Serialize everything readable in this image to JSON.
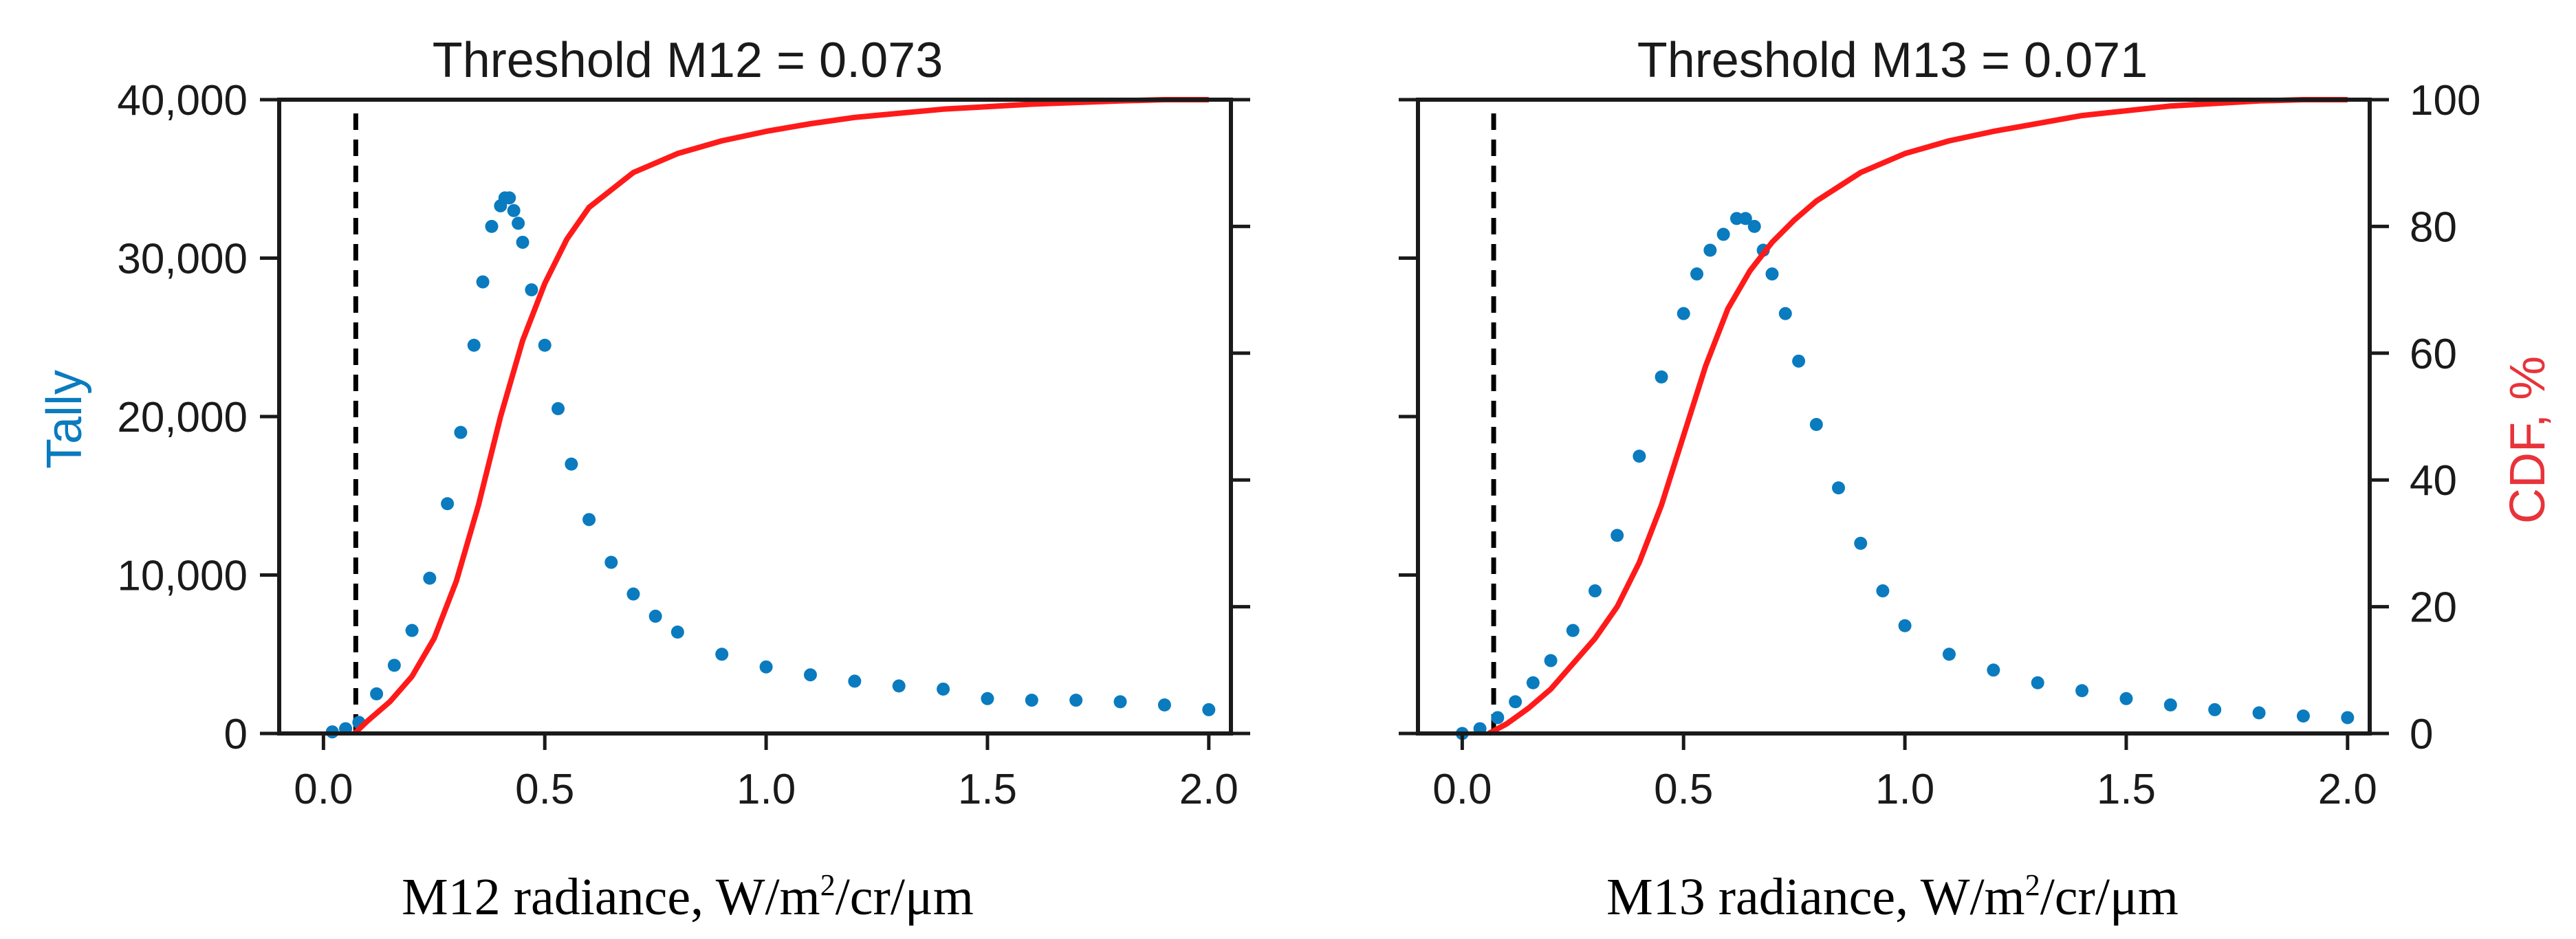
{
  "colors": {
    "tally": "#0a7bbf",
    "cdf": "#ff1a1a",
    "threshold": "#000000",
    "axes": "#1a1a1a"
  },
  "chart_data": [
    {
      "id": "m12",
      "type": "scatter",
      "title": "Threshold M12 = 0.073",
      "threshold": 0.073,
      "xlabel": {
        "main": "M12 radiance, W/m",
        "sup": "2",
        "rest": "/cr/μm"
      },
      "ylabel": "Tally",
      "y2label": "CDF, %",
      "xlim": [
        -0.1,
        2.05
      ],
      "ylim": [
        0,
        40000
      ],
      "y2lim": [
        0,
        100
      ],
      "xticks": [
        0,
        0.5,
        1,
        1.5,
        2
      ],
      "xticklabels": [
        "0.0",
        "0.5",
        "1.0",
        "1.5",
        "2.0"
      ],
      "yticks": [
        0,
        10000,
        20000,
        30000,
        40000
      ],
      "yticklabels": [
        "0",
        "10,000",
        "20,000",
        "30,000",
        "40,000"
      ],
      "y2ticks": [
        0,
        20,
        40,
        60,
        80,
        100
      ],
      "y2ticklabels": [],
      "series": [
        {
          "name": "Tally",
          "kind": "scatter",
          "x": [
            0.02,
            0.05,
            0.08,
            0.12,
            0.16,
            0.2,
            0.24,
            0.28,
            0.31,
            0.34,
            0.36,
            0.38,
            0.4,
            0.41,
            0.42,
            0.43,
            0.44,
            0.45,
            0.47,
            0.5,
            0.53,
            0.56,
            0.6,
            0.65,
            0.7,
            0.75,
            0.8,
            0.9,
            1.0,
            1.1,
            1.2,
            1.3,
            1.4,
            1.5,
            1.6,
            1.7,
            1.8,
            1.9,
            2.0
          ],
          "y": [
            100,
            300,
            700,
            2500,
            4300,
            6500,
            9800,
            14500,
            19000,
            24500,
            28500,
            32000,
            33300,
            33800,
            33800,
            33000,
            32200,
            31000,
            28000,
            24500,
            20500,
            17000,
            13500,
            10800,
            8800,
            7400,
            6400,
            5000,
            4200,
            3700,
            3300,
            3000,
            2800,
            2200,
            2100,
            2100,
            2000,
            1800,
            1500
          ]
        },
        {
          "name": "CDF",
          "kind": "line",
          "x": [
            0.07,
            0.1,
            0.15,
            0.2,
            0.25,
            0.3,
            0.35,
            0.4,
            0.45,
            0.5,
            0.55,
            0.6,
            0.7,
            0.8,
            0.9,
            1.0,
            1.1,
            1.2,
            1.4,
            1.6,
            1.8,
            1.9,
            2.0
          ],
          "y": [
            0,
            2,
            5,
            9,
            15,
            24,
            36,
            50,
            62,
            71,
            78,
            83,
            88.5,
            91.5,
            93.5,
            95,
            96.2,
            97.2,
            98.5,
            99.3,
            99.8,
            100,
            100
          ]
        }
      ]
    },
    {
      "id": "m13",
      "type": "scatter",
      "title": "Threshold M13 = 0.071",
      "threshold": 0.071,
      "xlabel": {
        "main": "M13 radiance, W/m",
        "sup": "2",
        "rest": "/cr/μm"
      },
      "ylabel": "Tally",
      "y2label": "CDF, %",
      "xlim": [
        -0.1,
        2.05
      ],
      "ylim": [
        0,
        40000
      ],
      "y2lim": [
        0,
        100
      ],
      "xticks": [
        0,
        0.5,
        1,
        1.5,
        2
      ],
      "xticklabels": [
        "0.0",
        "0.5",
        "1.0",
        "1.5",
        "2.0"
      ],
      "yticks": [
        0,
        10000,
        20000,
        30000,
        40000
      ],
      "yticklabels": [],
      "y2ticks": [
        0,
        20,
        40,
        60,
        80,
        100
      ],
      "y2ticklabels": [
        "0",
        "20",
        "40",
        "60",
        "80",
        "100"
      ],
      "series": [
        {
          "name": "Tally",
          "kind": "scatter",
          "x": [
            0.0,
            0.04,
            0.08,
            0.12,
            0.16,
            0.2,
            0.25,
            0.3,
            0.35,
            0.4,
            0.45,
            0.5,
            0.53,
            0.56,
            0.59,
            0.62,
            0.64,
            0.66,
            0.68,
            0.7,
            0.73,
            0.76,
            0.8,
            0.85,
            0.9,
            0.95,
            1.0,
            1.1,
            1.2,
            1.3,
            1.4,
            1.5,
            1.6,
            1.7,
            1.8,
            1.9,
            2.0
          ],
          "y": [
            0,
            300,
            1000,
            2000,
            3200,
            4600,
            6500,
            9000,
            12500,
            17500,
            22500,
            26500,
            29000,
            30500,
            31500,
            32500,
            32500,
            32000,
            30500,
            29000,
            26500,
            23500,
            19500,
            15500,
            12000,
            9000,
            6800,
            5000,
            4000,
            3200,
            2700,
            2200,
            1800,
            1500,
            1300,
            1100,
            1000
          ]
        },
        {
          "name": "CDF",
          "kind": "line",
          "x": [
            0.06,
            0.1,
            0.15,
            0.2,
            0.25,
            0.3,
            0.35,
            0.4,
            0.45,
            0.5,
            0.55,
            0.6,
            0.65,
            0.7,
            0.75,
            0.8,
            0.9,
            1.0,
            1.1,
            1.2,
            1.4,
            1.6,
            1.8,
            1.9,
            2.0
          ],
          "y": [
            0,
            1.5,
            4,
            7,
            11,
            15,
            20,
            27,
            36,
            47,
            58,
            67,
            73,
            77.5,
            81,
            84,
            88.5,
            91.5,
            93.5,
            95,
            97.5,
            99,
            99.8,
            100,
            100
          ]
        }
      ]
    }
  ]
}
